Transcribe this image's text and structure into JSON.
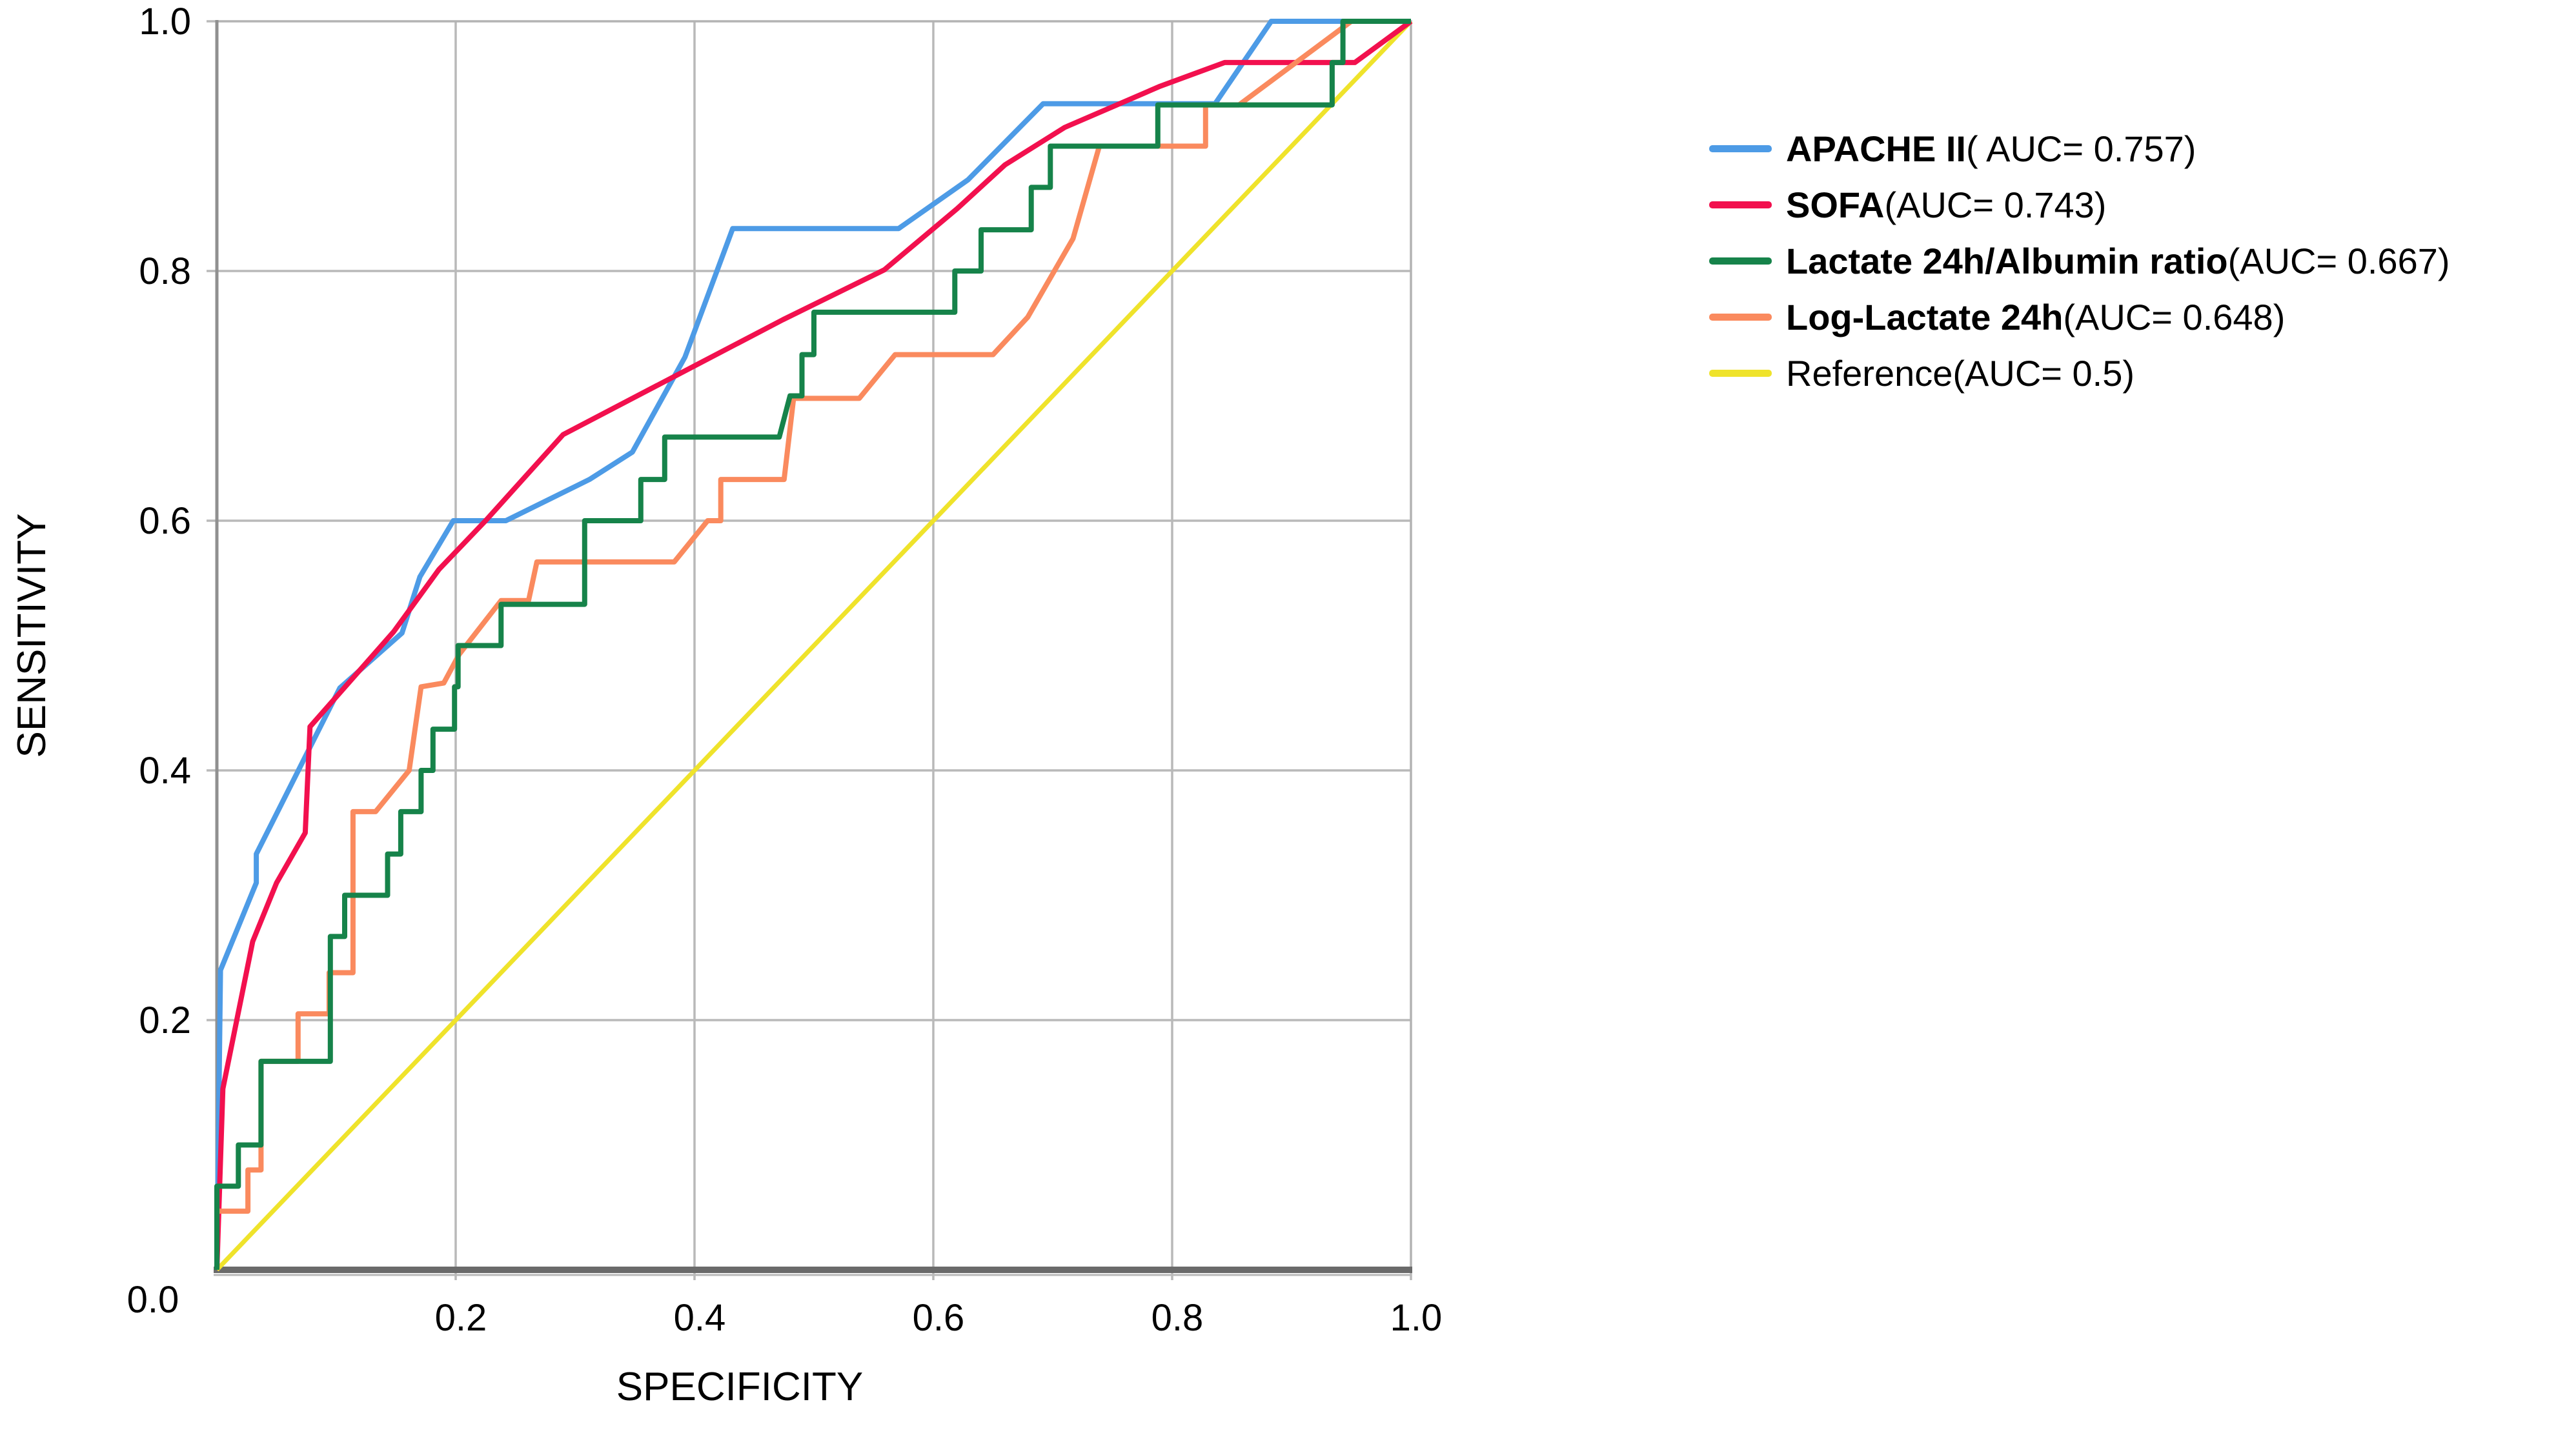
{
  "chart_data": {
    "type": "line",
    "subtype": "roc-curves",
    "title": "",
    "xlabel": "SPECIFICITY",
    "ylabel": "SENSITIVITY",
    "xlim": [
      0,
      1
    ],
    "ylim": [
      0,
      1
    ],
    "grid": true,
    "legend_position": "right",
    "x_tick_labels": [
      "0.0",
      "0.2",
      "0.4",
      "0.6",
      "0.8",
      "1.0"
    ],
    "x_tick_values": [
      0,
      0.2,
      0.4,
      0.6,
      0.8,
      1.0
    ],
    "y_tick_labels": [
      "0.0",
      "0.2",
      "0.4",
      "0.6",
      "0.8",
      "1.0"
    ],
    "y_tick_values": [
      0,
      0.2,
      0.4,
      0.6,
      0.8,
      1.0
    ],
    "series": [
      {
        "name": "APACHE II",
        "auc_label": "( AUC= 0.757)",
        "auc": 0.757,
        "color": "#4D9BE6",
        "bold_name": true,
        "points": [
          [
            0,
            0
          ],
          [
            0.003,
            0.24
          ],
          [
            0.033,
            0.31
          ],
          [
            0.033,
            0.333
          ],
          [
            0.103,
            0.466
          ],
          [
            0.155,
            0.51
          ],
          [
            0.17,
            0.555
          ],
          [
            0.198,
            0.6
          ],
          [
            0.242,
            0.6
          ],
          [
            0.312,
            0.633
          ],
          [
            0.348,
            0.655
          ],
          [
            0.392,
            0.731
          ],
          [
            0.432,
            0.834
          ],
          [
            0.571,
            0.834
          ],
          [
            0.629,
            0.873
          ],
          [
            0.692,
            0.934
          ],
          [
            0.836,
            0.934
          ],
          [
            0.883,
            1.0
          ],
          [
            1.0,
            1.0
          ]
        ]
      },
      {
        "name": "SOFA",
        "auc_label": " (AUC= 0.743)",
        "auc": 0.743,
        "color": "#F2104E",
        "bold_name": true,
        "points": [
          [
            0,
            0
          ],
          [
            0.005,
            0.145
          ],
          [
            0.03,
            0.263
          ],
          [
            0.05,
            0.31
          ],
          [
            0.074,
            0.35
          ],
          [
            0.078,
            0.435
          ],
          [
            0.148,
            0.511
          ],
          [
            0.186,
            0.561
          ],
          [
            0.225,
            0.6
          ],
          [
            0.29,
            0.669
          ],
          [
            0.4,
            0.724
          ],
          [
            0.474,
            0.761
          ],
          [
            0.559,
            0.801
          ],
          [
            0.62,
            0.85
          ],
          [
            0.66,
            0.885
          ],
          [
            0.71,
            0.915
          ],
          [
            0.79,
            0.948
          ],
          [
            0.844,
            0.967
          ],
          [
            0.953,
            0.967
          ],
          [
            1.0,
            1.0
          ]
        ]
      },
      {
        "name": "Lactate 24h/Albumin ratio",
        "auc_label": " (AUC= 0.667)",
        "auc": 0.667,
        "color": "#16834A",
        "bold_name": true,
        "points": [
          [
            0,
            0
          ],
          [
            0,
            0.067
          ],
          [
            0.018,
            0.067
          ],
          [
            0.018,
            0.1
          ],
          [
            0.037,
            0.1
          ],
          [
            0.037,
            0.167
          ],
          [
            0.095,
            0.167
          ],
          [
            0.095,
            0.267
          ],
          [
            0.107,
            0.267
          ],
          [
            0.107,
            0.3
          ],
          [
            0.143,
            0.3
          ],
          [
            0.143,
            0.333
          ],
          [
            0.154,
            0.333
          ],
          [
            0.154,
            0.367
          ],
          [
            0.171,
            0.367
          ],
          [
            0.171,
            0.4
          ],
          [
            0.181,
            0.4
          ],
          [
            0.181,
            0.433
          ],
          [
            0.199,
            0.433
          ],
          [
            0.199,
            0.467
          ],
          [
            0.202,
            0.467
          ],
          [
            0.202,
            0.5
          ],
          [
            0.238,
            0.5
          ],
          [
            0.238,
            0.533
          ],
          [
            0.308,
            0.533
          ],
          [
            0.308,
            0.6
          ],
          [
            0.355,
            0.6
          ],
          [
            0.355,
            0.633
          ],
          [
            0.375,
            0.633
          ],
          [
            0.375,
            0.667
          ],
          [
            0.471,
            0.667
          ],
          [
            0.48,
            0.7
          ],
          [
            0.49,
            0.7
          ],
          [
            0.49,
            0.733
          ],
          [
            0.5,
            0.733
          ],
          [
            0.5,
            0.767
          ],
          [
            0.618,
            0.767
          ],
          [
            0.618,
            0.8
          ],
          [
            0.64,
            0.8
          ],
          [
            0.64,
            0.833
          ],
          [
            0.682,
            0.833
          ],
          [
            0.682,
            0.867
          ],
          [
            0.698,
            0.867
          ],
          [
            0.698,
            0.9
          ],
          [
            0.788,
            0.9
          ],
          [
            0.788,
            0.933
          ],
          [
            0.934,
            0.933
          ],
          [
            0.934,
            0.967
          ],
          [
            0.943,
            0.967
          ],
          [
            0.943,
            1.0
          ],
          [
            1.0,
            1.0
          ]
        ]
      },
      {
        "name": "Log-Lactate 24h",
        "auc_label": " (AUC= 0.648)",
        "auc": 0.648,
        "color": "#FA8A5E",
        "bold_name": true,
        "points": [
          [
            0,
            0
          ],
          [
            0,
            0.047
          ],
          [
            0.026,
            0.047
          ],
          [
            0.026,
            0.08
          ],
          [
            0.037,
            0.08
          ],
          [
            0.037,
            0.167
          ],
          [
            0.068,
            0.167
          ],
          [
            0.068,
            0.205
          ],
          [
            0.094,
            0.205
          ],
          [
            0.094,
            0.238
          ],
          [
            0.114,
            0.238
          ],
          [
            0.114,
            0.367
          ],
          [
            0.133,
            0.367
          ],
          [
            0.161,
            0.4
          ],
          [
            0.171,
            0.467
          ],
          [
            0.19,
            0.47
          ],
          [
            0.203,
            0.493
          ],
          [
            0.238,
            0.536
          ],
          [
            0.261,
            0.536
          ],
          [
            0.268,
            0.567
          ],
          [
            0.383,
            0.567
          ],
          [
            0.411,
            0.6
          ],
          [
            0.422,
            0.6
          ],
          [
            0.422,
            0.633
          ],
          [
            0.475,
            0.633
          ],
          [
            0.483,
            0.698
          ],
          [
            0.538,
            0.698
          ],
          [
            0.568,
            0.733
          ],
          [
            0.65,
            0.733
          ],
          [
            0.679,
            0.763
          ],
          [
            0.717,
            0.826
          ],
          [
            0.739,
            0.9
          ],
          [
            0.828,
            0.9
          ],
          [
            0.828,
            0.933
          ],
          [
            0.856,
            0.933
          ],
          [
            0.95,
            1.0
          ],
          [
            1.0,
            1.0
          ]
        ]
      },
      {
        "name": "Reference",
        "auc_label": " (AUC= 0.5)",
        "auc": 0.5,
        "color": "#EFE32B",
        "bold_name": false,
        "points": [
          [
            0,
            0
          ],
          [
            1,
            1
          ]
        ]
      }
    ],
    "colors": {
      "grid": "#b9b9b9",
      "plot_border": "#b3b3b3",
      "left_axis": "#909090",
      "bottom_axis": "#6a6a6a",
      "text": "#000000"
    }
  }
}
